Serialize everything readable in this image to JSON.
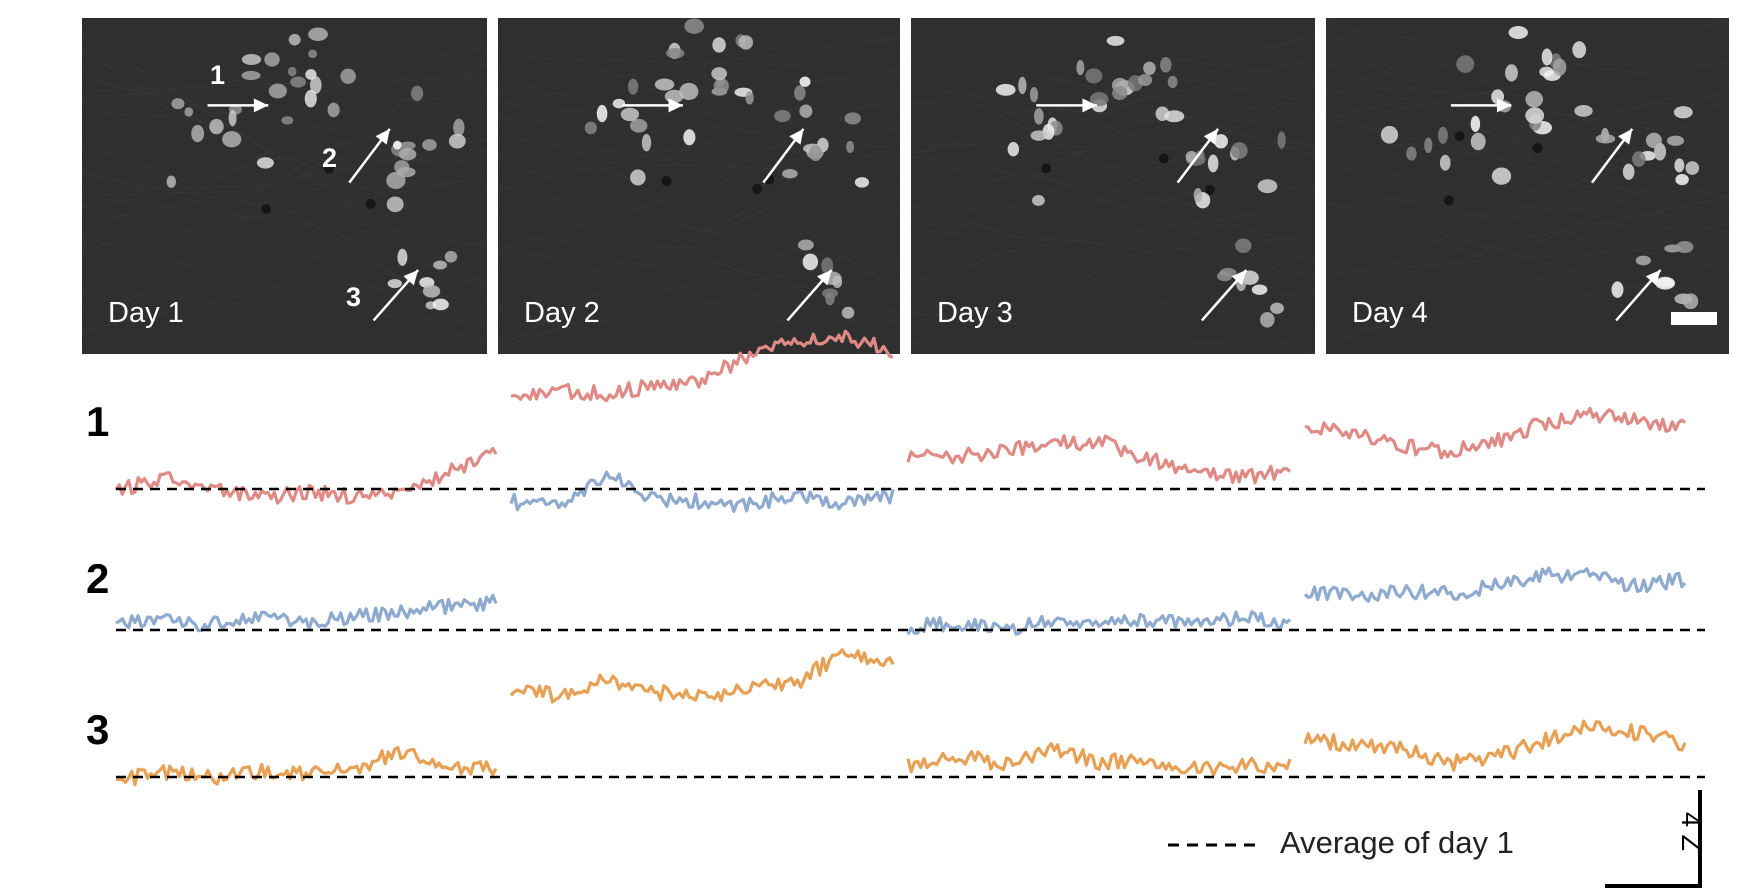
{
  "panels": [
    {
      "label": "Day 1",
      "cells": [
        "1",
        "2",
        "3"
      ]
    },
    {
      "label": "Day 2"
    },
    {
      "label": "Day 3"
    },
    {
      "label": "Day 4"
    }
  ],
  "rows": [
    {
      "label": "1",
      "color": "#e08a86"
    },
    {
      "label": "2",
      "color": "#8eaacf"
    },
    {
      "label": "3",
      "color": "#e7a054"
    }
  ],
  "legend": {
    "text": "Average of day 1"
  },
  "scale_bar": {
    "label": "4 Z"
  },
  "chart_data": {
    "type": "line",
    "x": [
      "Day 1",
      "Day 2",
      "Day 3",
      "Day 4"
    ],
    "series": [
      {
        "name": "1",
        "values": [
          0.2,
          5.4,
          1.4,
          2.6
        ]
      },
      {
        "name": "2",
        "values": [
          0.6,
          6.0,
          0.3,
          2.0
        ]
      },
      {
        "name": "3",
        "values": [
          0.3,
          4.3,
          0.7,
          1.5
        ]
      }
    ],
    "reference": {
      "label": "Average of day 1",
      "value": 0
    }
  }
}
